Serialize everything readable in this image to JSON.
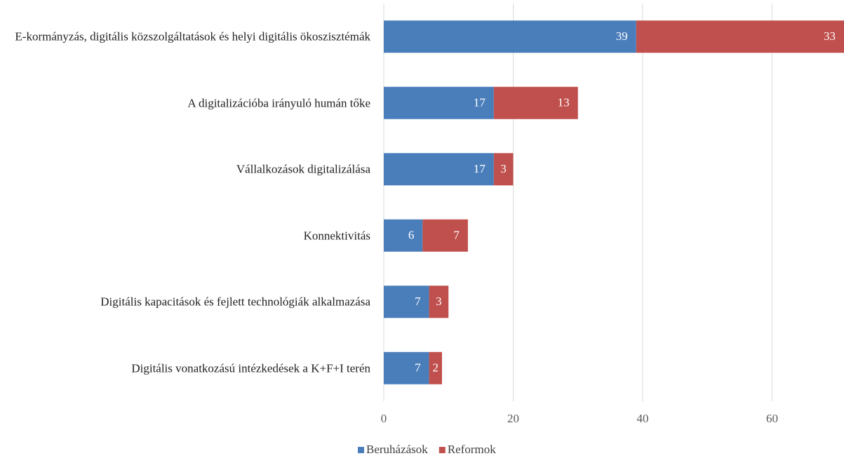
{
  "chart_data": {
    "type": "stacked_barh",
    "categories": [
      "E-kormányzás, digitális közszolgáltatások és helyi digitális ökoszisztémák",
      "A digitalizációba irányuló humán tőke",
      "Vállalkozások digitalizálása",
      "Konnektivitás",
      "Digitális kapacitások és fejlett technológiák alkalmazása",
      "Digitális vonatkozású intézkedések a K+F+I terén"
    ],
    "series": [
      {
        "name": "Beruházások",
        "color": "#4a7ebb",
        "values": [
          39,
          17,
          17,
          6,
          7,
          7
        ]
      },
      {
        "name": "Reformok",
        "color": "#c0504d",
        "values": [
          33,
          13,
          3,
          7,
          3,
          2
        ]
      }
    ],
    "xlim": [
      0,
      71
    ],
    "xticks": [
      0,
      20,
      40,
      60
    ],
    "grid": true,
    "legend": "bottom"
  }
}
